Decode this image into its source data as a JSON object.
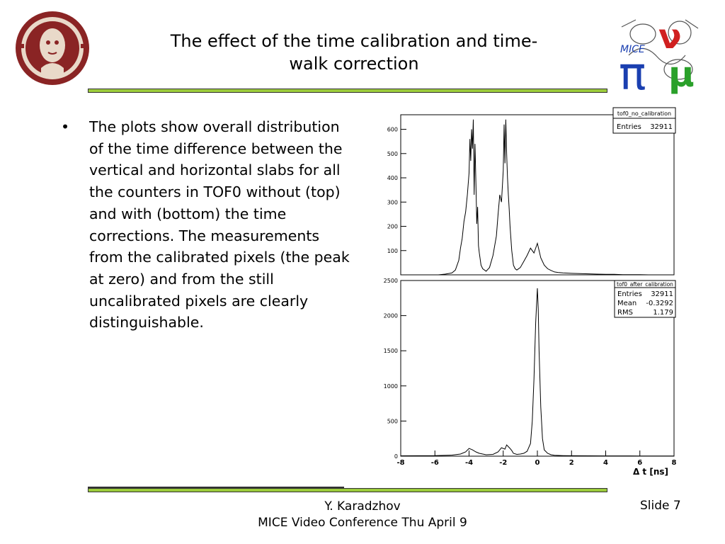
{
  "slide": {
    "title_line1": "The effect of the time calibration and time-",
    "title_line2": "walk correction",
    "bullet_marker": "•",
    "bullet_text": "The plots show overall distribution of the time difference between the vertical and horizontal slabs for all the counters in TOF0 without (top) and with (bottom) the time corrections. The measurements from the calibrated pixels (the peak at zero) and from the still uncalibrated pixels are clearly distinguishable.",
    "footer_author": "Y. Karadzhov",
    "footer_event": "MICE Video Conference Thu April 9",
    "slide_number": "Slide 7",
    "accent_color": "#9ccc3c"
  },
  "logos": {
    "left": {
      "icon": "university-seal-icon",
      "color": "#7a1f1f"
    },
    "right": {
      "icon": "mice-logo-icon",
      "text": "MICE",
      "pi_glyph": "π",
      "nu_glyph": "ν",
      "mu_glyph": "μ",
      "colors": {
        "pi": "#1a3fb0",
        "nu": "#d02020",
        "mu": "#2aa02a"
      }
    }
  },
  "chart_data": [
    {
      "type": "histogram",
      "name": "tof0_no_calibration",
      "stats": [
        {
          "label": "Entries",
          "value": "32911"
        }
      ],
      "x_range": [
        -8,
        8
      ],
      "y_range": [
        0,
        660
      ],
      "y_ticks": [
        "100",
        "200",
        "300",
        "400",
        "500",
        "600"
      ],
      "x": [
        -6.2,
        -5.8,
        -5.4,
        -5.0,
        -4.8,
        -4.6,
        -4.5,
        -4.4,
        -4.3,
        -4.2,
        -4.1,
        -4.0,
        -3.95,
        -3.9,
        -3.85,
        -3.8,
        -3.75,
        -3.7,
        -3.65,
        -3.6,
        -3.55,
        -3.5,
        -3.45,
        -3.4,
        -3.3,
        -3.2,
        -3.0,
        -2.8,
        -2.6,
        -2.4,
        -2.3,
        -2.2,
        -2.1,
        -2.0,
        -1.95,
        -1.9,
        -1.85,
        -1.8,
        -1.75,
        -1.7,
        -1.65,
        -1.6,
        -1.55,
        -1.5,
        -1.45,
        -1.4,
        -1.3,
        -1.2,
        -1.0,
        -0.8,
        -0.6,
        -0.4,
        -0.2,
        0.0,
        0.2,
        0.4,
        0.6,
        0.8,
        1.0,
        1.2,
        1.5,
        2.0,
        2.5,
        3.0,
        3.5,
        4.0,
        4.5,
        5.0,
        5.5,
        6.0,
        6.5,
        7.0
      ],
      "values": [
        0,
        0,
        3,
        8,
        20,
        60,
        110,
        150,
        220,
        260,
        330,
        420,
        560,
        470,
        600,
        520,
        640,
        330,
        540,
        380,
        210,
        280,
        120,
        90,
        40,
        25,
        15,
        30,
        80,
        160,
        250,
        330,
        300,
        430,
        620,
        460,
        640,
        500,
        400,
        330,
        270,
        200,
        150,
        100,
        70,
        40,
        25,
        20,
        30,
        55,
        80,
        110,
        90,
        130,
        70,
        40,
        25,
        18,
        12,
        10,
        8,
        6,
        5,
        4,
        3,
        2,
        2,
        1,
        1,
        1,
        0,
        0
      ]
    },
    {
      "type": "histogram",
      "name": "tof0_after_calibration",
      "stats": [
        {
          "label": "Entries",
          "value": "32911"
        },
        {
          "label": "Mean",
          "value": "-0.3292"
        },
        {
          "label": "RMS",
          "value": "1.179"
        }
      ],
      "x_range": [
        -8,
        8
      ],
      "y_range": [
        0,
        2500
      ],
      "y_ticks": [
        "0",
        "500",
        "1000",
        "1500",
        "2000",
        "2500"
      ],
      "x_ticks": [
        "-8",
        "-6",
        "-4",
        "-2",
        "0",
        "2",
        "4",
        "6",
        "8"
      ],
      "xlabel": "Δ t [ns]",
      "x": [
        -8.0,
        -6.0,
        -5.0,
        -4.5,
        -4.2,
        -4.0,
        -3.8,
        -3.6,
        -3.4,
        -3.0,
        -2.6,
        -2.3,
        -2.1,
        -1.9,
        -1.8,
        -1.6,
        -1.5,
        -1.4,
        -1.2,
        -1.0,
        -0.8,
        -0.6,
        -0.4,
        -0.3,
        -0.2,
        -0.1,
        0.0,
        0.05,
        0.1,
        0.2,
        0.3,
        0.4,
        0.6,
        0.8,
        1.0,
        1.5,
        2.0,
        3.0,
        4.0,
        6.0,
        8.0
      ],
      "values": [
        5,
        8,
        15,
        30,
        60,
        110,
        90,
        60,
        40,
        20,
        25,
        60,
        120,
        100,
        160,
        110,
        80,
        40,
        25,
        30,
        40,
        70,
        180,
        500,
        1100,
        1900,
        2390,
        2100,
        1500,
        700,
        250,
        90,
        40,
        20,
        12,
        8,
        6,
        5,
        4,
        3,
        2
      ]
    }
  ]
}
